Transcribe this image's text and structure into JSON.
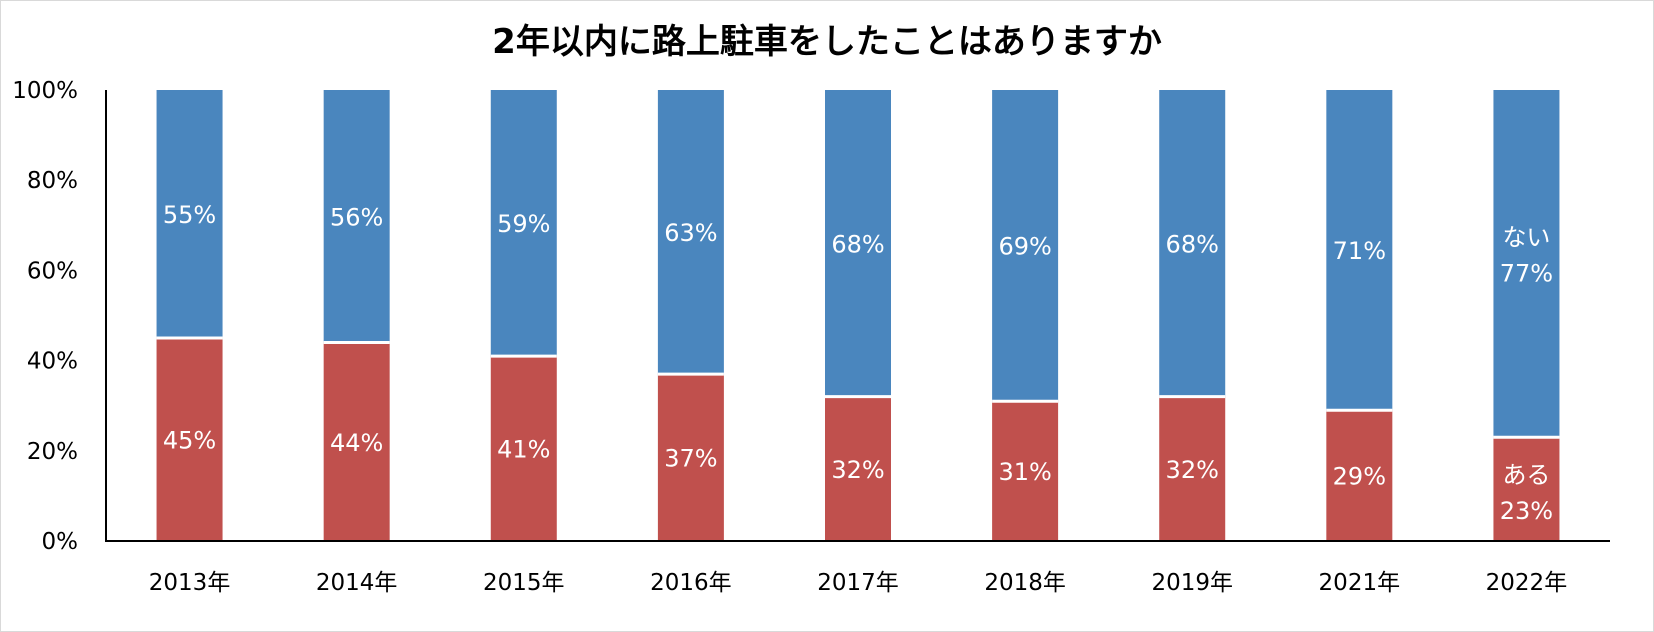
{
  "chart_data": {
    "type": "bar",
    "stacked": true,
    "title": "2年以内に路上駐車をしたことはありますか",
    "categories": [
      "2013年",
      "2014年",
      "2015年",
      "2016年",
      "2017年",
      "2018年",
      "2019年",
      "2021年",
      "2022年"
    ],
    "series": [
      {
        "name": "ある",
        "color": "#c0504d",
        "values": [
          45,
          44,
          41,
          37,
          32,
          31,
          32,
          29,
          23
        ]
      },
      {
        "name": "ない",
        "color": "#4a86be",
        "values": [
          55,
          56,
          59,
          63,
          68,
          69,
          68,
          71,
          77
        ]
      }
    ],
    "y_ticks": [
      "0%",
      "20%",
      "40%",
      "60%",
      "80%",
      "100%"
    ],
    "ylim": [
      0,
      100
    ],
    "value_suffix": "%",
    "xlabel": "",
    "ylabel": "",
    "legend": "inline-labels-on-last-bar"
  }
}
